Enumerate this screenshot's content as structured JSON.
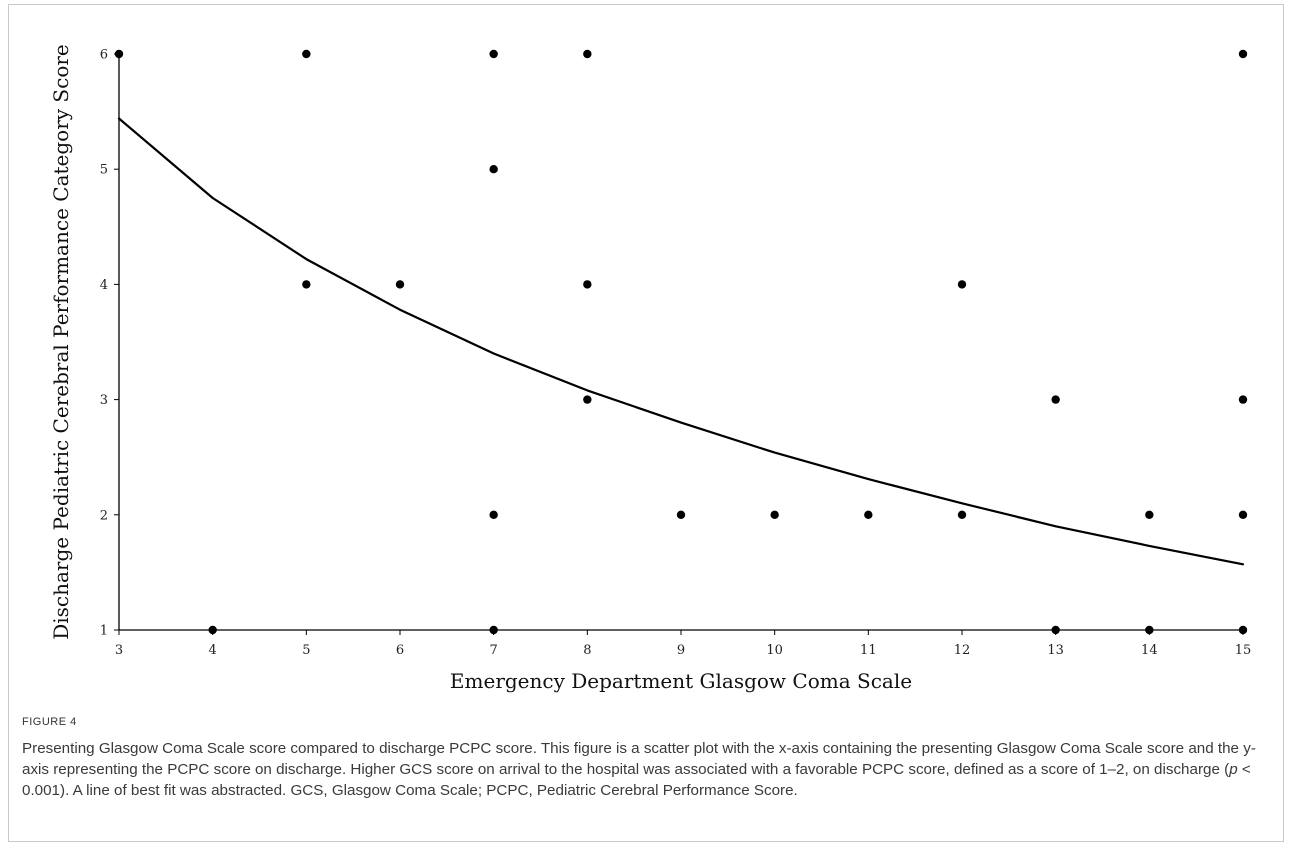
{
  "figure": {
    "label": "FIGURE 4",
    "caption_parts": [
      "Presenting Glasgow Coma Scale score compared to discharge PCPC score. This figure is a scatter plot with the x-axis containing the presenting Glasgow Coma Scale score and the y-axis representing the PCPC score on discharge. Higher GCS score on arrival to the hospital was associated with a favorable PCPC score, defined as a score of 1–2, on discharge (",
      "p",
      " < 0.001). A line of best fit was abstracted. GCS, Glasgow Coma Scale; PCPC, Pediatric Cerebral Performance Score."
    ]
  },
  "chart_data": {
    "type": "scatter",
    "title": "",
    "xlabel": "Emergency Department Glasgow Coma Scale",
    "ylabel": "Discharge Pediatric Cerebral Performance Category Score",
    "xlim": [
      3,
      15
    ],
    "ylim": [
      1,
      6
    ],
    "x_ticks": [
      3,
      4,
      5,
      6,
      7,
      8,
      9,
      10,
      11,
      12,
      13,
      14,
      15
    ],
    "y_ticks": [
      1,
      2,
      3,
      4,
      5,
      6
    ],
    "grid": false,
    "legend": "none",
    "points": [
      {
        "x": 3,
        "y": 6
      },
      {
        "x": 4,
        "y": 1
      },
      {
        "x": 5,
        "y": 6
      },
      {
        "x": 5,
        "y": 4
      },
      {
        "x": 6,
        "y": 4
      },
      {
        "x": 7,
        "y": 6
      },
      {
        "x": 7,
        "y": 5
      },
      {
        "x": 7,
        "y": 2
      },
      {
        "x": 7,
        "y": 1
      },
      {
        "x": 8,
        "y": 6
      },
      {
        "x": 8,
        "y": 4
      },
      {
        "x": 8,
        "y": 3
      },
      {
        "x": 9,
        "y": 2
      },
      {
        "x": 10,
        "y": 2
      },
      {
        "x": 11,
        "y": 2
      },
      {
        "x": 12,
        "y": 4
      },
      {
        "x": 12,
        "y": 2
      },
      {
        "x": 13,
        "y": 3
      },
      {
        "x": 13,
        "y": 1
      },
      {
        "x": 14,
        "y": 2
      },
      {
        "x": 14,
        "y": 1
      },
      {
        "x": 15,
        "y": 6
      },
      {
        "x": 15,
        "y": 3
      },
      {
        "x": 15,
        "y": 2
      },
      {
        "x": 15,
        "y": 1
      }
    ],
    "fit_line": {
      "x": [
        3,
        4,
        5,
        6,
        7,
        8,
        9,
        10,
        11,
        12,
        13,
        14,
        15
      ],
      "y": [
        5.44,
        4.75,
        4.22,
        3.78,
        3.4,
        3.08,
        2.8,
        2.54,
        2.31,
        2.1,
        1.9,
        1.73,
        1.57
      ]
    },
    "colors": {
      "marker": "#000000",
      "line": "#000000",
      "axis": "#000000"
    }
  }
}
